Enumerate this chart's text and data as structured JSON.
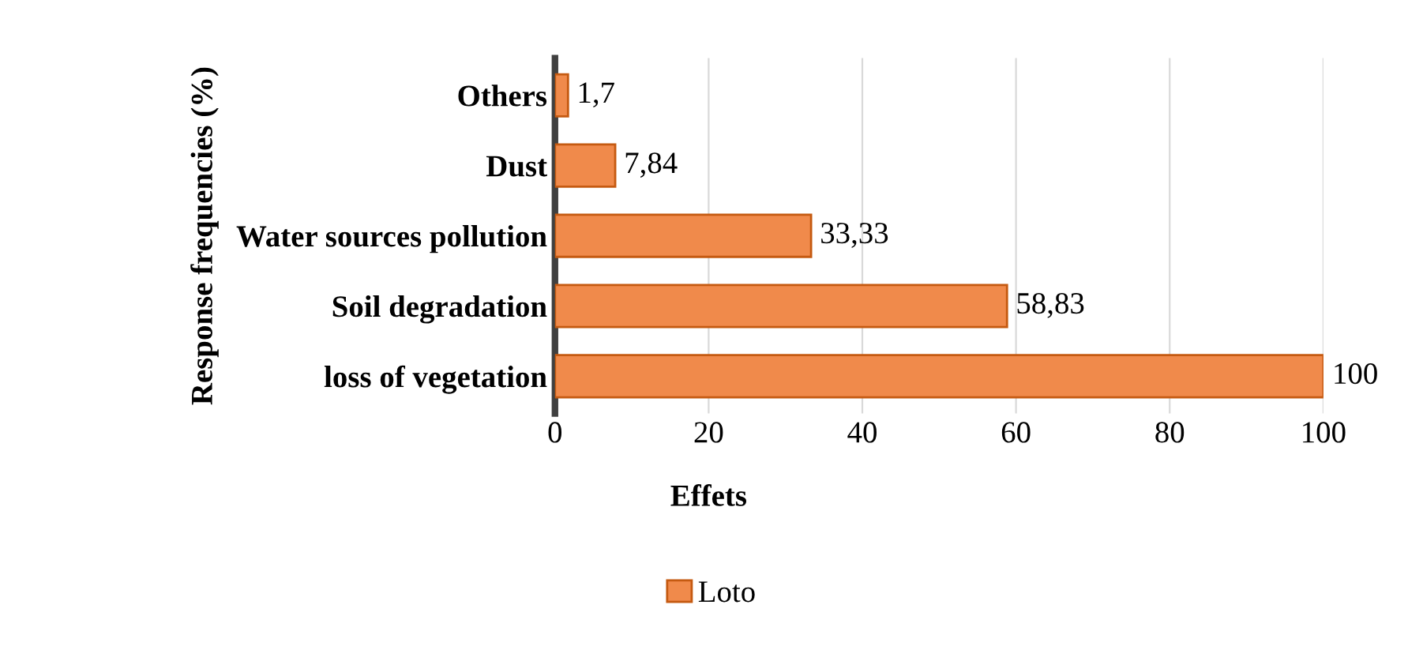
{
  "chart_data": {
    "type": "bar",
    "orientation": "horizontal",
    "categories": [
      "Others",
      "Dust",
      "Water sources pollution",
      "Soil degradation",
      "loss of vegetation"
    ],
    "series": [
      {
        "name": "Loto",
        "color": "#f08a4b",
        "values": [
          1.7,
          7.84,
          33.33,
          58.83,
          100
        ],
        "value_labels": [
          "1,7",
          "7,84",
          "33,33",
          "58,83",
          "100"
        ]
      }
    ],
    "xlim": [
      0,
      100
    ],
    "xticks": [
      0,
      20,
      40,
      60,
      80,
      100
    ],
    "xlabel": "Effets",
    "ylabel": "Response frequencies (%)",
    "grid": "x",
    "legend": "bottom"
  }
}
